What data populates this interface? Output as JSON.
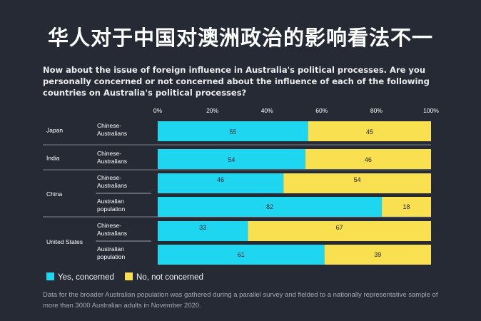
{
  "title": "华人对于中国对澳洲政治的影响看法不一",
  "question": "Now about the issue of foreign influence in Australia's political processes. Are you personally concerned or not concerned about the influence of each of the following countries on Australia's political processes?",
  "footnote": "Data for the broader Australian population was gathered during a parallel survey and fielded to a nationally representative sample of more than 3000 Australian adults in November 2020.",
  "colors": {
    "concerned": "#1ed6ef",
    "not_concerned": "#f8e050",
    "background": "#262a35",
    "grid": "#9aa0aa"
  },
  "chart_data": {
    "type": "bar",
    "orientation": "horizontal",
    "stacked": true,
    "xlim": [
      0,
      100
    ],
    "xticks": [
      "0%",
      "20%",
      "40%",
      "60%",
      "80%",
      "100%"
    ],
    "series": [
      {
        "name": "Yes, concerned",
        "color": "#1ed6ef"
      },
      {
        "name": "No, not concerned",
        "color": "#f8e050"
      }
    ],
    "groups": [
      {
        "country": "Japan",
        "rows": [
          {
            "label": "Chinese-\nAustralians",
            "values": [
              55,
              45
            ]
          }
        ]
      },
      {
        "country": "India",
        "rows": [
          {
            "label": "Chinese-\nAustralians",
            "values": [
              54,
              46
            ]
          }
        ]
      },
      {
        "country": "China",
        "rows": [
          {
            "label": "Chinese-\nAustralians",
            "values": [
              46,
              54
            ]
          },
          {
            "label": "Australian\npopulation",
            "values": [
              82,
              18
            ]
          }
        ]
      },
      {
        "country": "United States",
        "rows": [
          {
            "label": "Chinese-\nAustralians",
            "values": [
              33,
              67
            ]
          },
          {
            "label": "Australian\npopulation",
            "values": [
              61,
              39
            ]
          }
        ]
      }
    ]
  }
}
